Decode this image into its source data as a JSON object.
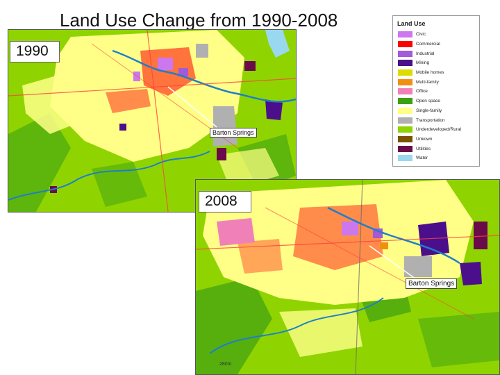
{
  "title": "Land Use Change from 1990-2008",
  "map_1990": {
    "year_label": "1990",
    "landmark_label": "Barton Springs"
  },
  "map_2008": {
    "year_label": "2008",
    "landmark_label": "Barton Springs",
    "scale_text": "280m"
  },
  "legend": {
    "title": "Land Use",
    "items": [
      {
        "label": "Civic",
        "color": "#cc77ee"
      },
      {
        "label": "Commercial",
        "color": "#ff0000"
      },
      {
        "label": "Industrial",
        "color": "#a35ad6"
      },
      {
        "label": "Mining",
        "color": "#4b0f8c"
      },
      {
        "label": "Mobile homes",
        "color": "#dcdc00"
      },
      {
        "label": "Multi-family",
        "color": "#f09010"
      },
      {
        "label": "Office",
        "color": "#f080b8"
      },
      {
        "label": "Open space",
        "color": "#3da012"
      },
      {
        "label": "Single-family",
        "color": "#ffff88"
      },
      {
        "label": "Transportation",
        "color": "#b0b0b0"
      },
      {
        "label": "Underdeveloped/Rural",
        "color": "#8fd400"
      },
      {
        "label": "Unkown",
        "color": "#7a5200"
      },
      {
        "label": "Utilities",
        "color": "#6a0a4a"
      },
      {
        "label": "Water",
        "color": "#9ad8f0"
      }
    ]
  }
}
